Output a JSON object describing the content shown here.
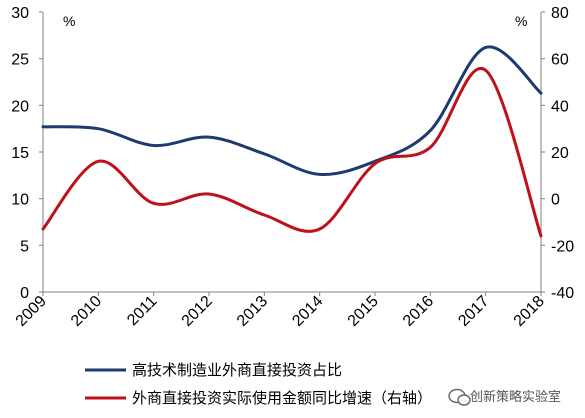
{
  "chart_data": {
    "type": "line",
    "categories": [
      "2009",
      "2010",
      "2011",
      "2012",
      "2013",
      "2014",
      "2015",
      "2016",
      "2017",
      "2018"
    ],
    "left_axis": {
      "unit": "%",
      "min": 0,
      "max": 30,
      "ticks": [
        "0",
        "5",
        "10",
        "15",
        "20",
        "25",
        "30"
      ]
    },
    "right_axis": {
      "unit": "%",
      "min": -40,
      "max": 80,
      "ticks": [
        "-40",
        "-20",
        "0",
        "20",
        "40",
        "60",
        "80"
      ]
    },
    "series": [
      {
        "name": "高技术制造业外商直接投资占比",
        "axis": "left",
        "color": "#1f3a6e",
        "values": [
          17.7,
          17.5,
          15.7,
          16.6,
          14.8,
          12.6,
          14.0,
          17.3,
          26.2,
          21.3
        ]
      },
      {
        "name": "外商直接投资实际使用金额同比增速（右轴）",
        "axis": "right",
        "color": "#c0101a",
        "values": [
          -13,
          16,
          -2,
          2,
          -7,
          -13,
          15,
          22,
          55,
          -16
        ]
      }
    ],
    "grid": false,
    "legend_position": "bottom-left"
  },
  "watermark": {
    "text": "创新策略实验室",
    "icon": "wechat-icon"
  }
}
